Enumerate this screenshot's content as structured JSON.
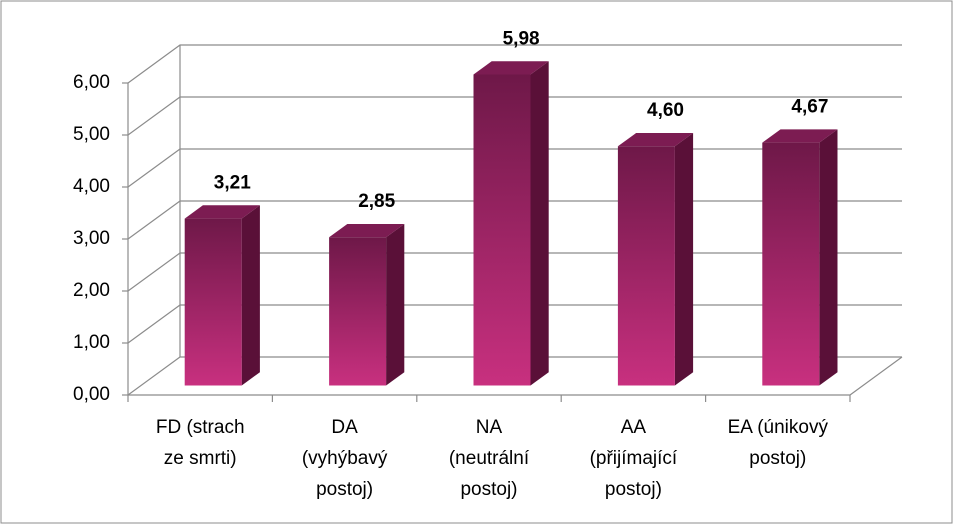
{
  "chart_data": {
    "type": "bar3d",
    "categories": [
      "FD (strach\nze smrti)",
      "DA\n(vyhýbavý\npostoj)",
      "NA\n(neutrální\npostoj)",
      "AA\n(přijímající\npostoj)",
      "EA (únikový\npostoj)"
    ],
    "values": [
      3.21,
      2.85,
      5.98,
      4.6,
      4.67
    ],
    "value_labels": [
      "3,21",
      "2,85",
      "5,98",
      "4,60",
      "4,67"
    ],
    "color": "#b02a74",
    "ylim": [
      0,
      6
    ],
    "yticks": [
      {
        "value": 0,
        "label": "0,00"
      },
      {
        "value": 1,
        "label": "1,00"
      },
      {
        "value": 2,
        "label": "2,00"
      },
      {
        "value": 3,
        "label": "3,00"
      },
      {
        "value": 4,
        "label": "4,00"
      },
      {
        "value": 5,
        "label": "5,00"
      },
      {
        "value": 6,
        "label": "6,00"
      }
    ],
    "grid": true
  }
}
